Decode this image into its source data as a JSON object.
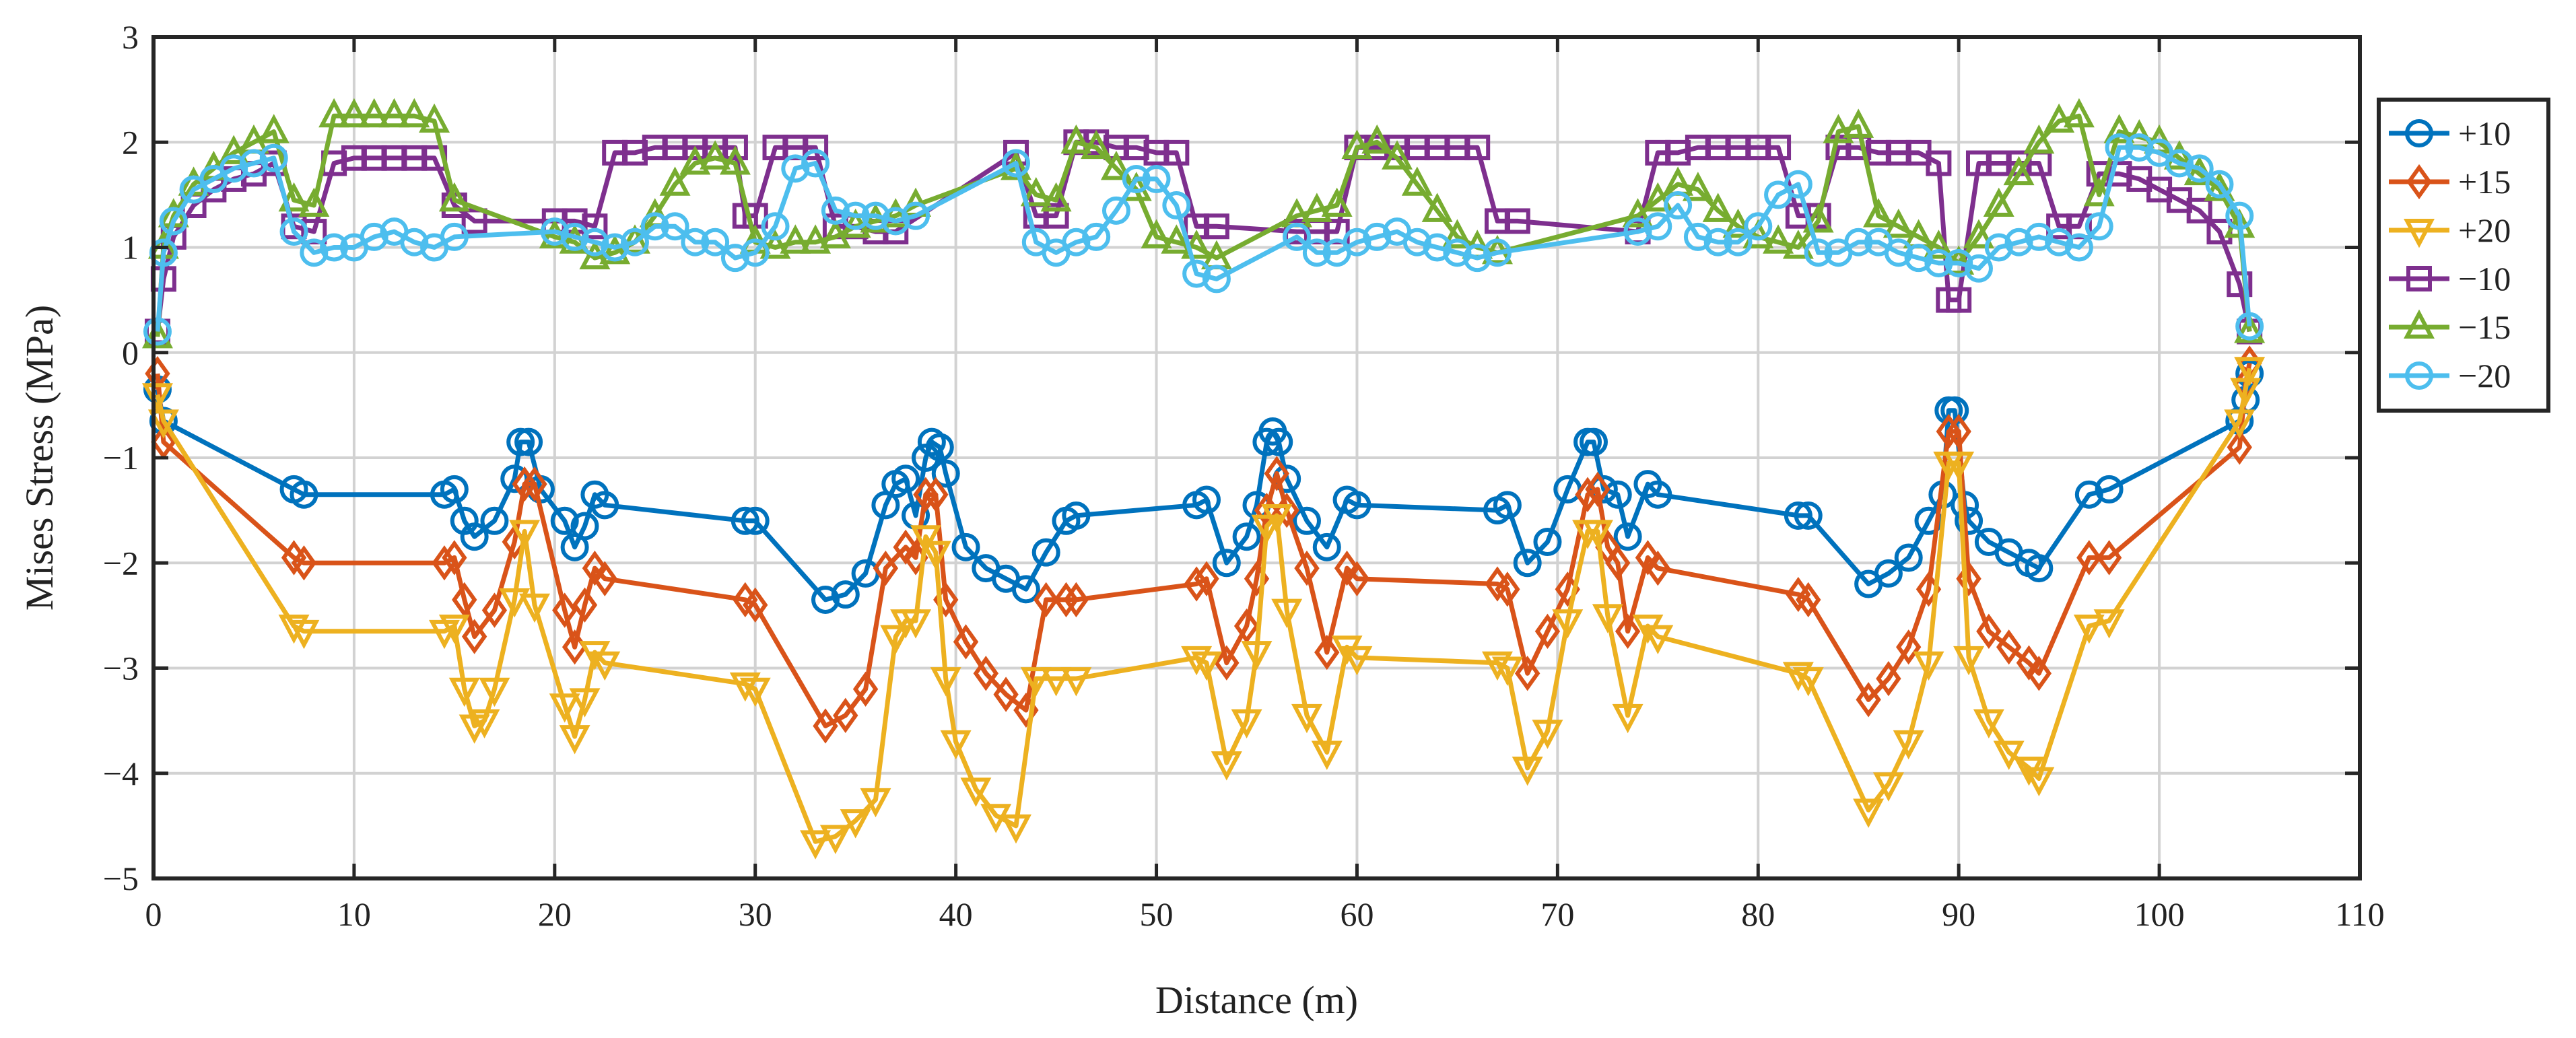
{
  "chart_data": {
    "type": "line",
    "title": "",
    "xlabel": "Distance (m)",
    "ylabel": "Mises Stress (MPa)",
    "xlim": [
      0,
      110
    ],
    "ylim": [
      -5,
      3
    ],
    "xticks": [
      0,
      10,
      20,
      30,
      40,
      50,
      60,
      70,
      80,
      90,
      100,
      110
    ],
    "yticks": [
      -5,
      -4,
      -3,
      -2,
      -1,
      0,
      1,
      2,
      3
    ],
    "xtick_labels": [
      "0",
      "10",
      "20",
      "30",
      "40",
      "50",
      "60",
      "70",
      "80",
      "90",
      "100",
      "110"
    ],
    "ytick_labels": [
      "−5",
      "−4",
      "−3",
      "−2",
      "−1",
      "0",
      "1",
      "2",
      "3"
    ],
    "grid": true,
    "legend_position": "right",
    "series": [
      {
        "name": "+10",
        "color": "#0072BD",
        "marker": "circle",
        "x": [
          0.2,
          0.5,
          7,
          7.5,
          14.5,
          15,
          15.5,
          16,
          17,
          18,
          18.3,
          18.7,
          19.3,
          20.5,
          21,
          21.5,
          22,
          22.5,
          29.5,
          30,
          33.5,
          34.5,
          35.5,
          36.5,
          37,
          37.5,
          38,
          38.5,
          38.8,
          39.2,
          39.5,
          40.5,
          41.5,
          42.5,
          43.5,
          44.5,
          45.5,
          46,
          52,
          52.5,
          53.5,
          54.5,
          55,
          55.5,
          55.8,
          56.1,
          56.5,
          57.5,
          58.5,
          59.5,
          60,
          67,
          67.5,
          68.5,
          69.5,
          70.5,
          71.5,
          71.8,
          72.3,
          73,
          73.5,
          74.5,
          75,
          82,
          82.5,
          85.5,
          86.5,
          87.5,
          88.5,
          89.2,
          89.5,
          89.8,
          90.3,
          90.5,
          91.5,
          92.5,
          93.5,
          94,
          96.5,
          97.5,
          104,
          104.3,
          104.5
        ],
        "y": [
          -0.35,
          -0.65,
          -1.3,
          -1.35,
          -1.35,
          -1.3,
          -1.6,
          -1.75,
          -1.6,
          -1.2,
          -0.85,
          -0.85,
          -1.3,
          -1.6,
          -1.85,
          -1.65,
          -1.35,
          -1.45,
          -1.6,
          -1.6,
          -2.35,
          -2.3,
          -2.1,
          -1.45,
          -1.25,
          -1.2,
          -1.55,
          -1.0,
          -0.85,
          -0.9,
          -1.15,
          -1.85,
          -2.05,
          -2.15,
          -2.25,
          -1.9,
          -1.6,
          -1.55,
          -1.45,
          -1.4,
          -2.0,
          -1.75,
          -1.45,
          -0.85,
          -0.75,
          -0.85,
          -1.2,
          -1.6,
          -1.85,
          -1.4,
          -1.45,
          -1.5,
          -1.45,
          -2.0,
          -1.8,
          -1.3,
          -0.85,
          -0.85,
          -1.3,
          -1.35,
          -1.75,
          -1.25,
          -1.35,
          -1.55,
          -1.55,
          -2.2,
          -2.1,
          -1.95,
          -1.6,
          -1.35,
          -0.55,
          -0.55,
          -1.45,
          -1.6,
          -1.8,
          -1.9,
          -2.0,
          -2.05,
          -1.35,
          -1.3,
          -0.65,
          -0.45,
          -0.2
        ]
      },
      {
        "name": "+15",
        "color": "#D95319",
        "marker": "diamond",
        "x": [
          0.2,
          0.5,
          7,
          7.5,
          14.5,
          15,
          15.5,
          16,
          17,
          18,
          18.5,
          19,
          20.5,
          21,
          21.5,
          22,
          22.5,
          29.5,
          30,
          33.5,
          34.5,
          35.5,
          36.5,
          37.5,
          38,
          38.5,
          39,
          39.5,
          40.5,
          41.5,
          42.5,
          43.5,
          44.5,
          45.5,
          46,
          52,
          52.5,
          53.5,
          54.5,
          55,
          55.5,
          56,
          56.5,
          57.5,
          58.5,
          59.5,
          60,
          67,
          67.5,
          68.5,
          69.5,
          70.5,
          71.5,
          72,
          72.5,
          73,
          73.5,
          74.5,
          75,
          82,
          82.5,
          85.5,
          86.5,
          87.5,
          88.5,
          89.5,
          90,
          90.5,
          91.5,
          92.5,
          93.5,
          94,
          96.5,
          97.5,
          104,
          104.3,
          104.5
        ],
        "y": [
          -0.2,
          -0.85,
          -1.95,
          -2.0,
          -2.0,
          -1.95,
          -2.35,
          -2.7,
          -2.45,
          -1.8,
          -1.25,
          -1.25,
          -2.45,
          -2.8,
          -2.4,
          -2.05,
          -2.15,
          -2.35,
          -2.4,
          -3.55,
          -3.45,
          -3.2,
          -2.05,
          -1.85,
          -1.95,
          -1.35,
          -1.35,
          -2.35,
          -2.75,
          -3.05,
          -3.25,
          -3.4,
          -2.35,
          -2.35,
          -2.35,
          -2.2,
          -2.15,
          -2.95,
          -2.6,
          -2.15,
          -1.5,
          -1.15,
          -1.5,
          -2.05,
          -2.85,
          -2.05,
          -2.15,
          -2.2,
          -2.25,
          -3.05,
          -2.65,
          -2.25,
          -1.35,
          -1.3,
          -1.85,
          -2.0,
          -2.65,
          -1.95,
          -2.05,
          -2.3,
          -2.35,
          -3.3,
          -3.1,
          -2.8,
          -2.25,
          -0.75,
          -0.75,
          -2.15,
          -2.65,
          -2.8,
          -2.95,
          -3.05,
          -1.95,
          -1.95,
          -0.9,
          -0.3,
          -0.1
        ]
      },
      {
        "name": "+20",
        "color": "#EDB120",
        "marker": "triangle-down",
        "x": [
          0.2,
          0.5,
          7,
          7.5,
          14.5,
          15,
          15.5,
          16,
          16.5,
          17,
          18,
          18.5,
          19,
          20.5,
          21,
          21.5,
          22,
          22.5,
          29.5,
          30,
          33,
          34,
          35,
          36,
          37,
          37.5,
          38,
          38.5,
          39,
          39.5,
          40,
          41,
          42,
          43,
          44,
          45,
          46,
          52,
          52.5,
          53.5,
          54.5,
          55,
          55.5,
          56,
          56.5,
          57.5,
          58.5,
          59.5,
          60,
          67,
          67.5,
          68.5,
          69.5,
          70.5,
          71.5,
          72,
          72.5,
          73.5,
          74.5,
          75,
          82,
          82.5,
          85.5,
          86.5,
          87.5,
          88.5,
          89.5,
          90,
          90.5,
          91.5,
          92.5,
          93.5,
          94,
          96.5,
          97.5,
          104,
          104.3,
          104.5
        ],
        "y": [
          -0.4,
          -0.65,
          -2.6,
          -2.65,
          -2.65,
          -2.6,
          -3.2,
          -3.55,
          -3.5,
          -3.2,
          -2.35,
          -1.7,
          -2.4,
          -3.35,
          -3.65,
          -3.3,
          -2.85,
          -2.95,
          -3.15,
          -3.2,
          -4.65,
          -4.6,
          -4.45,
          -4.25,
          -2.7,
          -2.55,
          -2.55,
          -1.75,
          -1.9,
          -3.1,
          -3.7,
          -4.15,
          -4.4,
          -4.5,
          -3.1,
          -3.1,
          -3.1,
          -2.9,
          -2.95,
          -3.9,
          -3.5,
          -2.85,
          -1.65,
          -1.55,
          -2.45,
          -3.45,
          -3.8,
          -2.8,
          -2.9,
          -2.95,
          -3.0,
          -3.95,
          -3.6,
          -2.55,
          -1.7,
          -1.7,
          -2.5,
          -3.45,
          -2.6,
          -2.7,
          -3.05,
          -3.1,
          -4.35,
          -4.1,
          -3.7,
          -2.95,
          -1.05,
          -1.05,
          -2.9,
          -3.5,
          -3.8,
          -3.95,
          -4.05,
          -2.6,
          -2.55,
          -0.65,
          -0.35,
          -0.15
        ]
      },
      {
        "name": "−10",
        "color": "#7E2F8E",
        "marker": "square",
        "x": [
          0.2,
          0.5,
          1,
          2,
          3,
          4,
          5,
          6,
          7,
          8,
          9,
          10,
          11,
          12,
          13,
          14,
          15,
          16,
          20,
          21,
          22,
          23,
          24,
          25,
          26,
          27,
          28,
          29,
          29.5,
          30,
          31,
          32,
          33,
          34,
          35,
          36,
          37,
          43,
          44,
          45,
          46,
          47,
          48,
          49,
          50,
          51,
          52,
          53,
          57,
          58,
          59,
          60,
          61,
          62,
          63,
          64,
          65,
          66,
          67,
          68,
          74,
          75,
          76,
          77,
          78,
          79,
          80,
          81,
          82,
          83,
          84,
          85,
          86,
          87,
          88,
          89,
          89.5,
          90,
          91,
          92,
          93,
          94,
          95,
          96,
          97,
          98,
          99,
          100,
          101,
          102,
          103,
          104,
          104.5
        ],
        "y": [
          0.2,
          0.7,
          1.1,
          1.4,
          1.55,
          1.65,
          1.7,
          1.8,
          1.2,
          1.15,
          1.8,
          1.85,
          1.85,
          1.85,
          1.85,
          1.85,
          1.4,
          1.25,
          1.25,
          1.25,
          1.2,
          1.9,
          1.9,
          1.95,
          1.95,
          1.95,
          1.95,
          1.95,
          1.3,
          1.3,
          1.95,
          1.95,
          1.95,
          1.2,
          1.2,
          1.15,
          1.15,
          1.9,
          1.3,
          1.3,
          2.0,
          2.0,
          1.95,
          1.95,
          1.9,
          1.9,
          1.2,
          1.2,
          1.15,
          1.15,
          1.15,
          1.95,
          1.95,
          1.95,
          1.95,
          1.95,
          1.95,
          1.95,
          1.25,
          1.25,
          1.15,
          1.9,
          1.9,
          1.95,
          1.95,
          1.95,
          1.95,
          1.95,
          1.3,
          1.3,
          1.95,
          1.95,
          1.9,
          1.9,
          1.9,
          1.8,
          0.5,
          0.5,
          1.8,
          1.8,
          1.8,
          1.8,
          1.2,
          1.2,
          1.7,
          1.7,
          1.65,
          1.55,
          1.45,
          1.35,
          1.15,
          0.65,
          0.2
        ]
      },
      {
        "name": "−15",
        "color": "#77AC30",
        "marker": "triangle-up",
        "x": [
          0.2,
          0.5,
          1,
          2,
          3,
          4,
          5,
          6,
          7,
          8,
          9,
          10,
          11,
          12,
          13,
          14,
          15,
          20,
          21,
          22,
          23,
          24,
          25,
          26,
          27,
          28,
          29,
          30,
          31,
          32,
          33,
          34,
          35,
          36,
          37,
          38,
          43,
          44,
          45,
          46,
          47,
          48,
          49,
          50,
          51,
          52,
          53,
          57,
          58,
          59,
          60,
          61,
          62,
          63,
          64,
          65,
          66,
          67,
          74,
          75,
          76,
          77,
          78,
          79,
          80,
          81,
          82,
          83,
          84,
          85,
          86,
          87,
          88,
          89,
          90,
          91,
          92,
          93,
          94,
          95,
          96,
          97,
          98,
          99,
          100,
          101,
          102,
          103,
          104,
          104.5
        ],
        "y": [
          0.15,
          1.0,
          1.3,
          1.6,
          1.75,
          1.9,
          2.0,
          2.1,
          1.45,
          1.4,
          2.25,
          2.25,
          2.25,
          2.25,
          2.25,
          2.2,
          1.45,
          1.1,
          1.05,
          0.9,
          0.95,
          1.05,
          1.3,
          1.6,
          1.8,
          1.85,
          1.8,
          1.05,
          1.0,
          1.05,
          1.05,
          1.1,
          1.2,
          1.25,
          1.3,
          1.4,
          1.75,
          1.5,
          1.45,
          2.0,
          1.95,
          1.75,
          1.55,
          1.1,
          1.05,
          1.0,
          0.9,
          1.3,
          1.35,
          1.4,
          1.95,
          2.0,
          1.85,
          1.6,
          1.35,
          1.1,
          1.0,
          0.95,
          1.3,
          1.45,
          1.6,
          1.55,
          1.35,
          1.2,
          1.1,
          1.05,
          1.0,
          1.25,
          2.1,
          2.15,
          1.3,
          1.2,
          1.1,
          1.0,
          0.85,
          1.1,
          1.4,
          1.7,
          2.0,
          2.2,
          2.25,
          1.5,
          2.1,
          2.05,
          2.0,
          1.85,
          1.7,
          1.55,
          1.2,
          0.2
        ]
      },
      {
        "name": "−20",
        "color": "#4DBEEE",
        "marker": "circle",
        "x": [
          0.2,
          0.5,
          1,
          2,
          3,
          4,
          5,
          6,
          7,
          8,
          9,
          10,
          11,
          12,
          13,
          14,
          15,
          20,
          21,
          22,
          23,
          24,
          25,
          26,
          27,
          28,
          29,
          30,
          31,
          32,
          33,
          34,
          35,
          36,
          37,
          38,
          43,
          44,
          45,
          46,
          47,
          48,
          49,
          50,
          51,
          52,
          53,
          57,
          58,
          59,
          60,
          61,
          62,
          63,
          64,
          65,
          66,
          67,
          74,
          75,
          76,
          77,
          78,
          79,
          80,
          81,
          82,
          83,
          84,
          85,
          86,
          87,
          88,
          89,
          90,
          91,
          92,
          93,
          94,
          95,
          96,
          97,
          98,
          99,
          100,
          101,
          102,
          103,
          104,
          104.5
        ],
        "y": [
          0.2,
          0.95,
          1.25,
          1.55,
          1.65,
          1.75,
          1.8,
          1.85,
          1.15,
          0.95,
          1.0,
          1.0,
          1.1,
          1.15,
          1.05,
          1.0,
          1.1,
          1.15,
          1.1,
          1.05,
          1.0,
          1.05,
          1.2,
          1.2,
          1.05,
          1.05,
          0.9,
          0.95,
          1.2,
          1.75,
          1.8,
          1.35,
          1.3,
          1.3,
          1.25,
          1.3,
          1.8,
          1.05,
          0.95,
          1.05,
          1.1,
          1.35,
          1.65,
          1.65,
          1.4,
          0.75,
          0.7,
          1.1,
          0.95,
          0.95,
          1.05,
          1.1,
          1.15,
          1.05,
          1.0,
          0.95,
          0.9,
          0.95,
          1.15,
          1.2,
          1.4,
          1.1,
          1.05,
          1.05,
          1.2,
          1.5,
          1.6,
          0.95,
          0.95,
          1.05,
          1.05,
          0.95,
          0.9,
          0.85,
          0.85,
          0.8,
          1.0,
          1.05,
          1.1,
          1.05,
          1.0,
          1.2,
          1.95,
          1.95,
          1.9,
          1.8,
          1.75,
          1.6,
          1.3,
          0.25
        ]
      }
    ]
  }
}
